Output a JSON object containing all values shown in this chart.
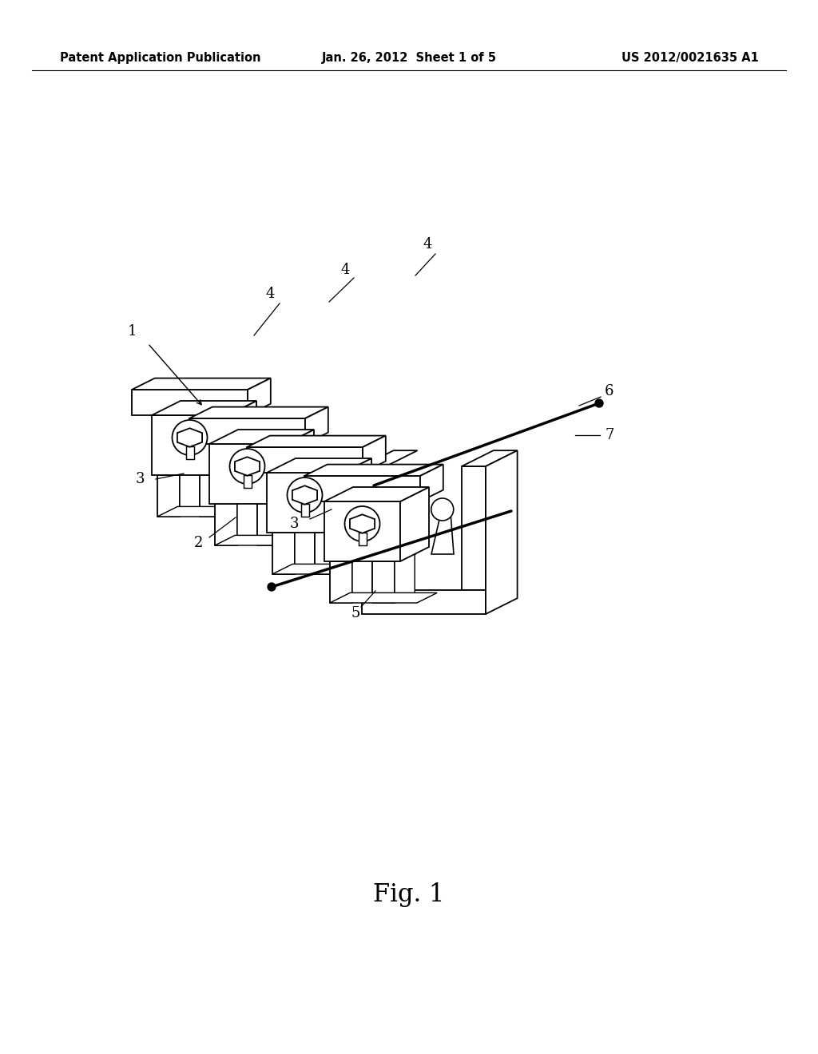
{
  "background_color": "#ffffff",
  "header_left": "Patent Application Publication",
  "header_center": "Jan. 26, 2012  Sheet 1 of 5",
  "header_right": "US 2012/0021635 A1",
  "figure_label": "Fig. 1",
  "header_fontsize": 10.5,
  "fig_label_fontsize": 22,
  "line_color": "#000000",
  "face_color": "#ffffff",
  "label_fontsize": 13
}
